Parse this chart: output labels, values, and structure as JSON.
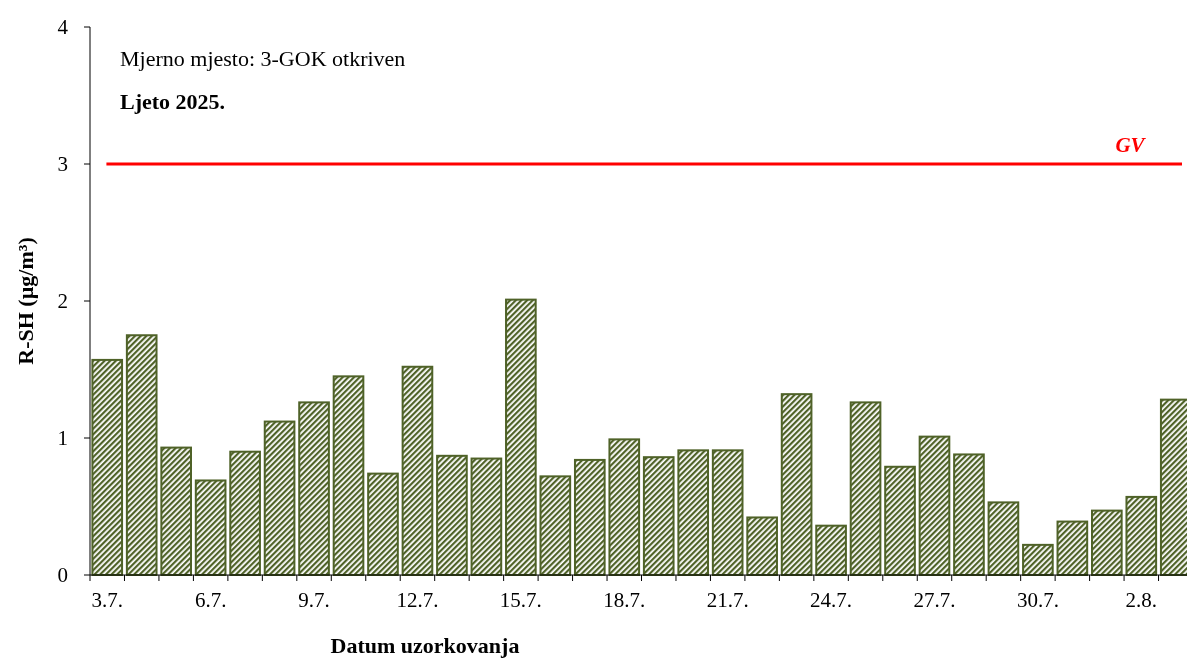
{
  "chart_data": {
    "type": "bar",
    "xlabel": "Datum uzorkovanja",
    "ylabel": "R-SH (µg/m³)",
    "annotations": [
      "Mjerno mjesto: 3-GOK otkriven",
      "Ljeto 2025."
    ],
    "categories": [
      "3.7.",
      null,
      null,
      "6.7.",
      null,
      null,
      "9.7.",
      null,
      null,
      "12.7.",
      null,
      null,
      "15.7.",
      null,
      null,
      "18.7.",
      null,
      null,
      "21.7.",
      null,
      null,
      "24.7.",
      null,
      null,
      "27.7.",
      null,
      null,
      "30.7.",
      null,
      null,
      "2.8.",
      null
    ],
    "series": [
      {
        "color": "#4f6228",
        "values": [
          1.57,
          1.75,
          0.93,
          0.69,
          0.9,
          1.12,
          1.26,
          1.45,
          0.74,
          1.52,
          0.87,
          0.85,
          2.01,
          0.72,
          0.84,
          0.99,
          0.86,
          0.91,
          0.91,
          0.42,
          1.32,
          0.36,
          1.26,
          0.79,
          1.01,
          0.88,
          0.53,
          0.22,
          0.39,
          0.47,
          0.57,
          1.28
        ]
      }
    ],
    "ylim": [
      0,
      4
    ],
    "yticks": [
      0,
      1,
      2,
      3,
      4
    ],
    "ref_lines": [
      {
        "axis": "y",
        "value": 3,
        "label": "GV",
        "color": "#ff0000"
      }
    ]
  }
}
